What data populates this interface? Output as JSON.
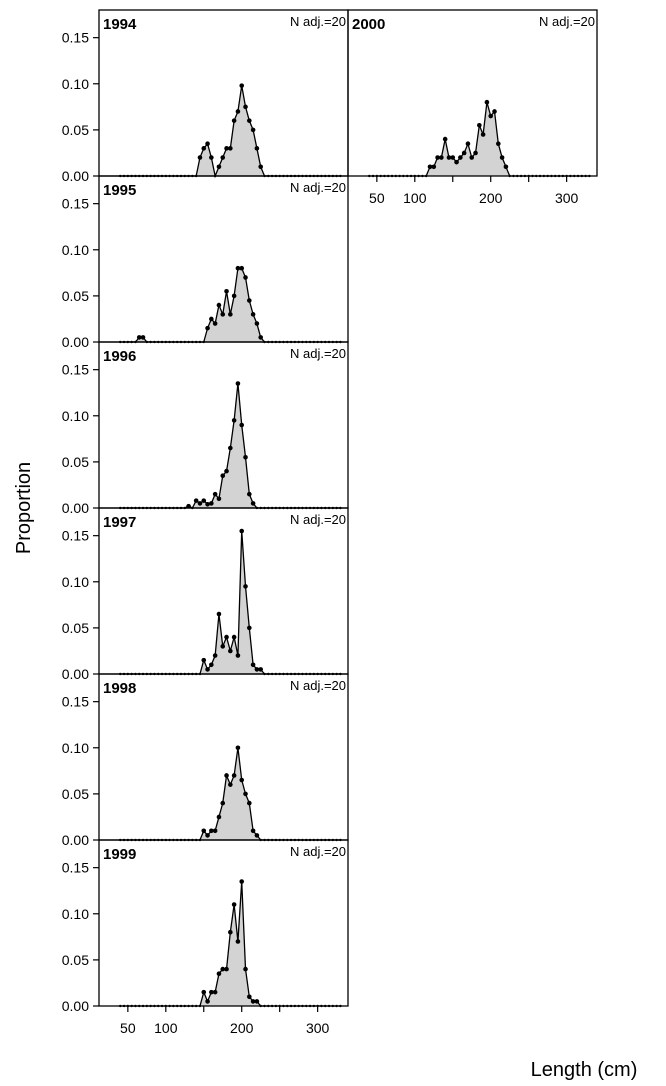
{
  "chart_data": {
    "type": "area",
    "xlabel": "Length (cm)",
    "ylabel": "Proportion",
    "xlim": [
      12,
      340
    ],
    "ylim": [
      0,
      0.18
    ],
    "x_ticks": [
      50,
      100,
      200,
      300
    ],
    "y_ticks": [
      0.0,
      0.05,
      0.1,
      0.15
    ],
    "y_tick_labels": [
      "0.00",
      "0.05",
      "0.10",
      "0.15"
    ],
    "fill_color": "#d3d3d3",
    "line_color": "#000000",
    "panels": [
      {
        "year": "1994",
        "n_label": "N adj.=20",
        "x": [
          140,
          145,
          150,
          155,
          160,
          165,
          170,
          175,
          180,
          185,
          190,
          195,
          200,
          205,
          210,
          215,
          220,
          225,
          230
        ],
        "y": [
          0.0,
          0.02,
          0.03,
          0.035,
          0.02,
          0.0,
          0.01,
          0.02,
          0.03,
          0.03,
          0.06,
          0.07,
          0.098,
          0.075,
          0.06,
          0.05,
          0.03,
          0.01,
          0.0
        ]
      },
      {
        "year": "1995",
        "n_label": "N adj.=20",
        "x": [
          65,
          70,
          150,
          155,
          160,
          165,
          170,
          175,
          180,
          185,
          190,
          195,
          200,
          205,
          210,
          215,
          220,
          225,
          230,
          235
        ],
        "y": [
          0.005,
          0.005,
          0.0,
          0.015,
          0.025,
          0.02,
          0.04,
          0.03,
          0.055,
          0.03,
          0.05,
          0.08,
          0.08,
          0.07,
          0.045,
          0.03,
          0.02,
          0.005,
          0.0,
          0.0
        ],
        "x_extra": []
      },
      {
        "year": "1996",
        "n_label": "N adj.=20",
        "x": [
          130,
          140,
          145,
          150,
          155,
          160,
          165,
          170,
          175,
          180,
          185,
          190,
          195,
          200,
          205,
          210,
          215,
          220
        ],
        "y": [
          0.002,
          0.008,
          0.005,
          0.008,
          0.004,
          0.005,
          0.015,
          0.01,
          0.035,
          0.04,
          0.065,
          0.095,
          0.135,
          0.09,
          0.055,
          0.015,
          0.005,
          0.0
        ]
      },
      {
        "year": "1997",
        "n_label": "N adj.=20",
        "x": [
          150,
          155,
          160,
          165,
          170,
          175,
          180,
          185,
          190,
          195,
          200,
          205,
          210,
          215,
          220,
          225,
          230
        ],
        "y": [
          0.015,
          0.005,
          0.01,
          0.02,
          0.065,
          0.03,
          0.04,
          0.025,
          0.04,
          0.02,
          0.155,
          0.095,
          0.05,
          0.01,
          0.005,
          0.005,
          0.0
        ]
      },
      {
        "year": "1998",
        "n_label": "N adj.=20",
        "x": [
          150,
          155,
          160,
          165,
          170,
          175,
          180,
          185,
          190,
          195,
          200,
          205,
          210,
          215,
          220,
          225
        ],
        "y": [
          0.01,
          0.005,
          0.01,
          0.01,
          0.025,
          0.04,
          0.07,
          0.06,
          0.07,
          0.1,
          0.065,
          0.05,
          0.04,
          0.01,
          0.005,
          0.0
        ]
      },
      {
        "year": "1999",
        "n_label": "N adj.=20",
        "x": [
          150,
          155,
          160,
          165,
          170,
          175,
          180,
          185,
          190,
          195,
          200,
          205,
          210,
          215,
          220,
          225
        ],
        "y": [
          0.015,
          0.005,
          0.015,
          0.015,
          0.035,
          0.04,
          0.04,
          0.08,
          0.11,
          0.07,
          0.135,
          0.04,
          0.01,
          0.005,
          0.005,
          0.0
        ]
      },
      {
        "year": "2000",
        "n_label": "N adj.=20",
        "x": [
          120,
          125,
          130,
          135,
          140,
          145,
          150,
          155,
          160,
          165,
          170,
          175,
          180,
          185,
          190,
          195,
          200,
          205,
          210,
          215,
          220,
          225
        ],
        "y": [
          0.01,
          0.01,
          0.02,
          0.02,
          0.04,
          0.02,
          0.02,
          0.015,
          0.02,
          0.025,
          0.035,
          0.02,
          0.025,
          0.055,
          0.045,
          0.08,
          0.065,
          0.07,
          0.035,
          0.02,
          0.01,
          0.0
        ]
      }
    ]
  }
}
